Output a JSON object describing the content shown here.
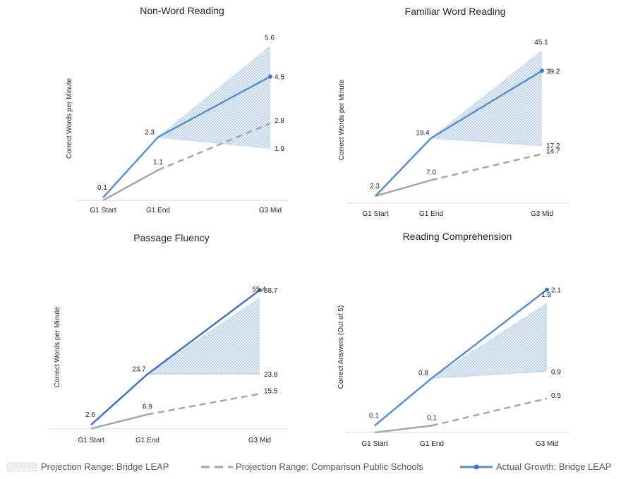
{
  "colors": {
    "actual": "#5b8fcb",
    "actual_dark": "#4472c4",
    "comparison": "#a6a6a6",
    "range_fill": "#bdd7ee",
    "range_edge": "#c6dbef",
    "axis": "#d9d9d9",
    "text": "#262626",
    "legend_text": "#595959"
  },
  "legend": {
    "range_label": "Projection Range: Bridge LEAP",
    "comparison_label": "Projection Range: Comparison Public Schools",
    "actual_label": "Actual Growth: Bridge LEAP"
  },
  "chart_data": [
    {
      "type": "line",
      "title": "Non-Word Reading",
      "ylabel": "Correct Words per Minute",
      "categories": [
        "G1 Start",
        "G1 End",
        "G3 Mid"
      ],
      "ylim": [
        0,
        6
      ],
      "actual": {
        "name": "Actual Growth: Bridge LEAP",
        "values": [
          0.1,
          2.3,
          4.5
        ]
      },
      "comparison": {
        "name": "Projection Range: Comparison Public Schools",
        "values": [
          0,
          1.1,
          2.8
        ]
      },
      "projection_range": {
        "name": "Projection Range: Bridge LEAP",
        "start": 2.3,
        "high": 5.6,
        "low": 1.9
      },
      "labels": {
        "actual": [
          "0.1",
          "2.3",
          "4.5"
        ],
        "comparison_mid": "1.1",
        "comparison_end": "2.8",
        "high": "5.6",
        "low": "1.9"
      }
    },
    {
      "type": "line",
      "title": "Familiar Word Reading",
      "ylabel": "Correct Words per Minute",
      "categories": [
        "G1 Start",
        "G1 End",
        "G3 Mid"
      ],
      "ylim": [
        0,
        48
      ],
      "actual": {
        "name": "Actual Growth: Bridge LEAP",
        "values": [
          2.3,
          19.4,
          39.2
        ]
      },
      "comparison": {
        "name": "Projection Range: Comparison Public Schools",
        "values": [
          2.3,
          7.0,
          14.7
        ]
      },
      "projection_range": {
        "name": "Projection Range: Bridge LEAP",
        "start": 19.4,
        "high": 45.1,
        "low": 17.2
      },
      "labels": {
        "actual": [
          "2.3",
          "19.4",
          "39.2"
        ],
        "comparison_mid": "7.0",
        "comparison_end": "14.7",
        "high": "45.1",
        "low": "17.2"
      }
    },
    {
      "type": "line",
      "title": "Passage Fluency",
      "ylabel": "Correct Words per Minute",
      "categories": [
        "G1 Start",
        "G1 End",
        "G3 Mid"
      ],
      "ylim": [
        0,
        62
      ],
      "actual": {
        "name": "Actual Growth: Bridge LEAP",
        "values": [
          2.6,
          23.7,
          58.7
        ]
      },
      "comparison": {
        "name": "Projection Range: Comparison Public Schools",
        "values": [
          1.0,
          6.9,
          15.5
        ]
      },
      "projection_range": {
        "name": "Projection Range: Bridge LEAP",
        "start": 23.7,
        "high": 55.4,
        "low": 23.8
      },
      "labels": {
        "actual": [
          "2.6",
          "23.7",
          "58.7"
        ],
        "comparison_mid": "6.9",
        "comparison_end": "15.5",
        "high": "55.4",
        "low": "23.8"
      }
    },
    {
      "type": "line",
      "title": "Reading Comprehension",
      "ylabel": "Correct Answers (Out of 5)",
      "categories": [
        "G1 Start",
        "G1 End",
        "G3 Mid"
      ],
      "ylim": [
        0,
        2.2
      ],
      "actual": {
        "name": "Actual Growth: Bridge LEAP",
        "values": [
          0.1,
          0.8,
          2.1
        ]
      },
      "comparison": {
        "name": "Projection Range: Comparison Public Schools",
        "values": [
          0,
          0.1,
          0.5
        ]
      },
      "projection_range": {
        "name": "Projection Range: Bridge LEAP",
        "start": 0.8,
        "high": 1.9,
        "low": 0.9
      },
      "labels": {
        "actual": [
          "0.1",
          "0.8",
          "2.1"
        ],
        "comparison_mid": "0.1",
        "comparison_end": "0.5",
        "high": "1.9",
        "low": "0.9"
      }
    }
  ]
}
